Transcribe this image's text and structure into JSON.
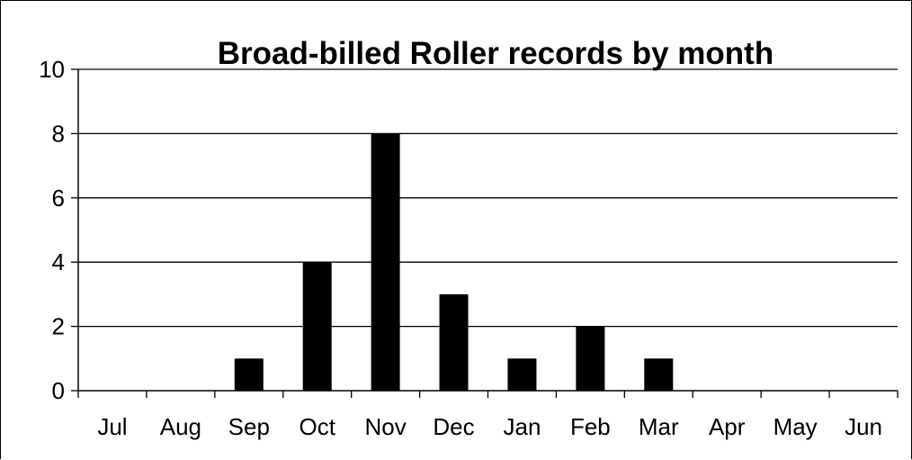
{
  "chart_data": {
    "type": "bar",
    "title": "Broad-billed Roller records by month",
    "xlabel": "",
    "ylabel": "",
    "categories": [
      "Jul",
      "Aug",
      "Sep",
      "Oct",
      "Nov",
      "Dec",
      "Jan",
      "Feb",
      "Mar",
      "Apr",
      "May",
      "Jun"
    ],
    "values": [
      0,
      0,
      1,
      4,
      8,
      3,
      1,
      2,
      1,
      0,
      0,
      0
    ],
    "ylim": [
      0,
      10
    ],
    "yticks": [
      0,
      2,
      4,
      6,
      8,
      10
    ],
    "grid": true,
    "legend": "none",
    "colors": {
      "bar": "#000000",
      "grid": "#000000",
      "axis": "#000000",
      "background": "#ffffff"
    }
  }
}
